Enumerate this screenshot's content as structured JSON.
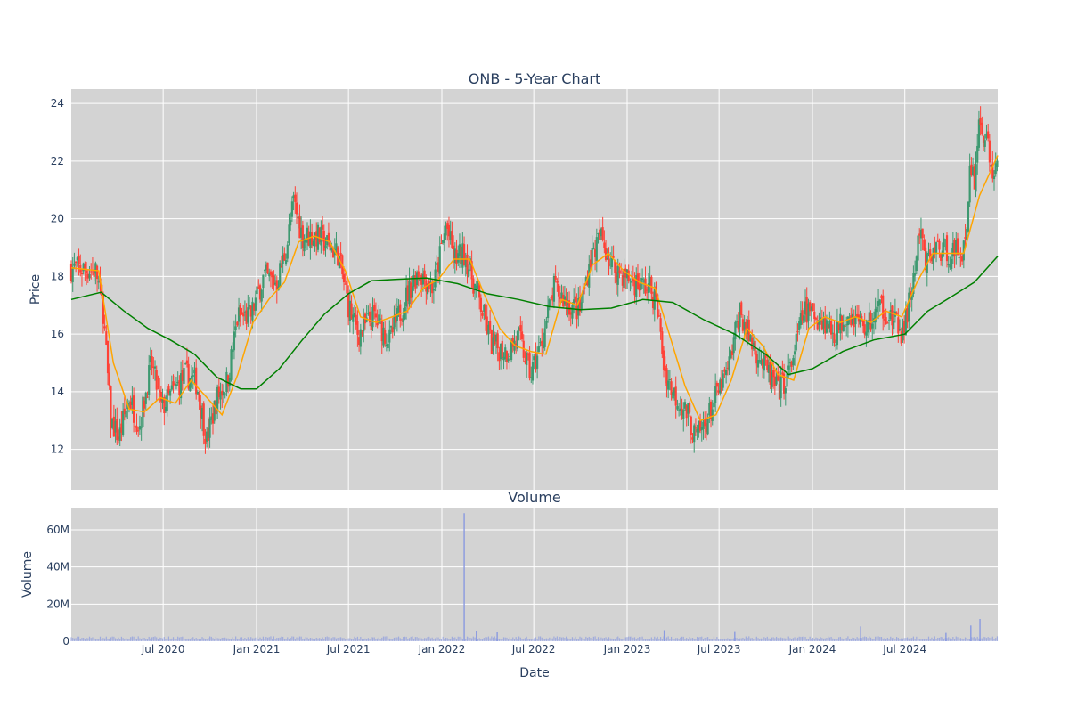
{
  "chart_data": [
    {
      "type": "candlestick",
      "title": "ONB - 5-Year Chart",
      "xlabel": "",
      "ylabel": "Price",
      "x_range": [
        "2020-01-02",
        "2024-12-31"
      ],
      "ylim": [
        10.6,
        24.5
      ],
      "y_ticks": [
        12,
        14,
        16,
        18,
        20,
        22,
        24
      ],
      "grid": true,
      "colors": {
        "increasing": "#3d9970",
        "decreasing": "#ff4136",
        "ma_short": "#ffa500",
        "ma_long": "#008000",
        "background": "#d3d3d3"
      },
      "price_keypoints": [
        [
          "2020-01-02",
          18.3
        ],
        [
          "2020-02-20",
          18.2
        ],
        [
          "2020-03-05",
          16.8
        ],
        [
          "2020-03-20",
          13.0
        ],
        [
          "2020-04-05",
          12.4
        ],
        [
          "2020-04-25",
          13.8
        ],
        [
          "2020-05-15",
          12.8
        ],
        [
          "2020-06-08",
          15.0
        ],
        [
          "2020-06-28",
          13.4
        ],
        [
          "2020-07-20",
          14.0
        ],
        [
          "2020-08-15",
          14.6
        ],
        [
          "2020-09-05",
          14.3
        ],
        [
          "2020-09-25",
          12.3
        ],
        [
          "2020-10-15",
          13.8
        ],
        [
          "2020-11-05",
          14.4
        ],
        [
          "2020-11-25",
          16.6
        ],
        [
          "2020-12-20",
          16.6
        ],
        [
          "2021-01-15",
          18.0
        ],
        [
          "2021-02-10",
          17.8
        ],
        [
          "2021-03-01",
          19.0
        ],
        [
          "2021-03-15",
          20.6
        ],
        [
          "2021-04-01",
          19.4
        ],
        [
          "2021-05-01",
          19.4
        ],
        [
          "2021-06-10",
          18.8
        ],
        [
          "2021-07-01",
          17.0
        ],
        [
          "2021-07-20",
          16.0
        ],
        [
          "2021-08-20",
          16.6
        ],
        [
          "2021-09-20",
          15.8
        ],
        [
          "2021-10-20",
          17.2
        ],
        [
          "2021-11-15",
          18.2
        ],
        [
          "2021-12-15",
          17.6
        ],
        [
          "2022-01-10",
          19.8
        ],
        [
          "2022-01-25",
          18.6
        ],
        [
          "2022-02-15",
          18.8
        ],
        [
          "2022-03-15",
          17.2
        ],
        [
          "2022-04-10",
          15.6
        ],
        [
          "2022-05-10",
          15.4
        ],
        [
          "2022-06-01",
          15.9
        ],
        [
          "2022-06-25",
          14.6
        ],
        [
          "2022-07-15",
          15.6
        ],
        [
          "2022-08-10",
          17.6
        ],
        [
          "2022-09-10",
          17.0
        ],
        [
          "2022-09-30",
          16.8
        ],
        [
          "2022-10-20",
          18.6
        ],
        [
          "2022-11-10",
          19.4
        ],
        [
          "2022-12-01",
          18.4
        ],
        [
          "2022-12-20",
          18.1
        ],
        [
          "2023-01-15",
          17.8
        ],
        [
          "2023-02-15",
          17.6
        ],
        [
          "2023-03-01",
          17.0
        ],
        [
          "2023-03-15",
          14.8
        ],
        [
          "2023-04-01",
          14.0
        ],
        [
          "2023-05-01",
          13.2
        ],
        [
          "2023-05-15",
          12.4
        ],
        [
          "2023-06-01",
          12.8
        ],
        [
          "2023-06-25",
          13.8
        ],
        [
          "2023-07-20",
          14.8
        ],
        [
          "2023-08-10",
          16.8
        ],
        [
          "2023-09-01",
          15.8
        ],
        [
          "2023-10-01",
          14.8
        ],
        [
          "2023-10-25",
          14.0
        ],
        [
          "2023-11-15",
          14.6
        ],
        [
          "2023-12-15",
          16.8
        ],
        [
          "2024-01-15",
          16.6
        ],
        [
          "2024-02-15",
          16.0
        ],
        [
          "2024-03-10",
          16.8
        ],
        [
          "2024-04-15",
          16.2
        ],
        [
          "2024-05-15",
          17.0
        ],
        [
          "2024-06-10",
          16.4
        ],
        [
          "2024-06-28",
          16.0
        ],
        [
          "2024-07-15",
          17.6
        ],
        [
          "2024-08-01",
          19.6
        ],
        [
          "2024-08-10",
          18.4
        ],
        [
          "2024-09-01",
          19.0
        ],
        [
          "2024-10-01",
          18.8
        ],
        [
          "2024-10-30",
          19.0
        ],
        [
          "2024-11-06",
          22.0
        ],
        [
          "2024-11-15",
          21.4
        ],
        [
          "2024-11-25",
          23.4
        ],
        [
          "2024-12-10",
          22.6
        ],
        [
          "2024-12-20",
          21.6
        ],
        [
          "2024-12-31",
          21.8
        ]
      ],
      "series": [
        {
          "kind": "moving_average_short",
          "color": "#ffa500",
          "points": [
            [
              "2020-01-02",
              18.3
            ],
            [
              "2020-02-25",
              18.2
            ],
            [
              "2020-03-25",
              15.0
            ],
            [
              "2020-04-25",
              13.4
            ],
            [
              "2020-05-25",
              13.3
            ],
            [
              "2020-06-25",
              13.8
            ],
            [
              "2020-07-25",
              13.6
            ],
            [
              "2020-08-25",
              14.4
            ],
            [
              "2020-09-25",
              13.8
            ],
            [
              "2020-10-25",
              13.2
            ],
            [
              "2020-11-25",
              14.6
            ],
            [
              "2020-12-25",
              16.4
            ],
            [
              "2021-01-25",
              17.2
            ],
            [
              "2021-02-25",
              17.8
            ],
            [
              "2021-03-25",
              19.2
            ],
            [
              "2021-04-25",
              19.4
            ],
            [
              "2021-05-25",
              19.2
            ],
            [
              "2021-06-25",
              18.2
            ],
            [
              "2021-07-25",
              16.6
            ],
            [
              "2021-08-25",
              16.4
            ],
            [
              "2021-09-25",
              16.6
            ],
            [
              "2021-10-25",
              16.8
            ],
            [
              "2021-11-25",
              17.6
            ],
            [
              "2021-12-25",
              17.9
            ],
            [
              "2022-01-25",
              18.6
            ],
            [
              "2022-02-25",
              18.6
            ],
            [
              "2022-03-25",
              17.4
            ],
            [
              "2022-04-25",
              16.2
            ],
            [
              "2022-05-25",
              15.6
            ],
            [
              "2022-06-25",
              15.4
            ],
            [
              "2022-07-25",
              15.3
            ],
            [
              "2022-08-25",
              17.2
            ],
            [
              "2022-09-25",
              17.0
            ],
            [
              "2022-10-25",
              18.4
            ],
            [
              "2022-11-25",
              18.8
            ],
            [
              "2022-12-25",
              18.2
            ],
            [
              "2023-01-25",
              17.8
            ],
            [
              "2023-02-25",
              17.6
            ],
            [
              "2023-03-25",
              16.0
            ],
            [
              "2023-04-25",
              14.2
            ],
            [
              "2023-05-25",
              13.0
            ],
            [
              "2023-06-25",
              13.2
            ],
            [
              "2023-07-25",
              14.4
            ],
            [
              "2023-08-25",
              16.2
            ],
            [
              "2023-09-25",
              15.6
            ],
            [
              "2023-10-25",
              14.6
            ],
            [
              "2023-11-25",
              14.4
            ],
            [
              "2023-12-25",
              16.2
            ],
            [
              "2024-01-25",
              16.6
            ],
            [
              "2024-02-25",
              16.4
            ],
            [
              "2024-03-25",
              16.6
            ],
            [
              "2024-04-25",
              16.4
            ],
            [
              "2024-05-25",
              16.8
            ],
            [
              "2024-06-25",
              16.6
            ],
            [
              "2024-07-25",
              17.8
            ],
            [
              "2024-08-25",
              18.8
            ],
            [
              "2024-09-25",
              18.8
            ],
            [
              "2024-10-25",
              18.8
            ],
            [
              "2024-11-25",
              20.8
            ],
            [
              "2024-12-31",
              22.2
            ]
          ]
        },
        {
          "kind": "moving_average_long",
          "color": "#008000",
          "points": [
            [
              "2020-01-02",
              17.2
            ],
            [
              "2020-03-01",
              17.45
            ],
            [
              "2020-04-15",
              16.8
            ],
            [
              "2020-06-01",
              16.2
            ],
            [
              "2020-07-15",
              15.8
            ],
            [
              "2020-09-01",
              15.3
            ],
            [
              "2020-10-15",
              14.5
            ],
            [
              "2020-12-01",
              14.1
            ],
            [
              "2021-01-01",
              14.1
            ],
            [
              "2021-02-15",
              14.8
            ],
            [
              "2021-04-01",
              15.8
            ],
            [
              "2021-05-15",
              16.7
            ],
            [
              "2021-07-01",
              17.4
            ],
            [
              "2021-08-15",
              17.85
            ],
            [
              "2021-10-01",
              17.9
            ],
            [
              "2021-12-01",
              17.95
            ],
            [
              "2022-02-01",
              17.75
            ],
            [
              "2022-04-01",
              17.4
            ],
            [
              "2022-06-01",
              17.2
            ],
            [
              "2022-08-01",
              16.95
            ],
            [
              "2022-10-01",
              16.85
            ],
            [
              "2022-12-01",
              16.9
            ],
            [
              "2023-02-01",
              17.2
            ],
            [
              "2023-04-01",
              17.1
            ],
            [
              "2023-06-01",
              16.5
            ],
            [
              "2023-08-01",
              16.0
            ],
            [
              "2023-10-01",
              15.3
            ],
            [
              "2023-11-15",
              14.6
            ],
            [
              "2024-01-01",
              14.8
            ],
            [
              "2024-03-01",
              15.4
            ],
            [
              "2024-05-01",
              15.8
            ],
            [
              "2024-07-01",
              16.0
            ],
            [
              "2024-08-15",
              16.8
            ],
            [
              "2024-10-01",
              17.3
            ],
            [
              "2024-11-15",
              17.8
            ],
            [
              "2024-12-31",
              18.7
            ]
          ]
        }
      ]
    },
    {
      "type": "bar",
      "title": "Volume",
      "xlabel": "Date",
      "ylabel": "Volume",
      "ylim": [
        0,
        72000000
      ],
      "y_ticks": [
        0,
        20000000,
        40000000,
        60000000
      ],
      "y_tick_labels": [
        "0",
        "20M",
        "40M",
        "60M"
      ],
      "x_ticks": [
        "2020-07-01",
        "2021-01-01",
        "2021-07-01",
        "2022-01-01",
        "2022-07-01",
        "2023-01-01",
        "2023-07-01",
        "2024-01-01",
        "2024-07-01"
      ],
      "x_tick_labels": [
        "Jul 2020",
        "Jan 2021",
        "Jul 2021",
        "Jan 2022",
        "Jul 2022",
        "Jan 2023",
        "Jul 2023",
        "Jan 2024",
        "Jul 2024"
      ],
      "color": "#8a9ae0",
      "base_volume": 1500000,
      "spikes": [
        [
          "2022-02-14",
          69000000
        ],
        [
          "2024-11-26",
          12000000
        ],
        [
          "2024-11-08",
          8500000
        ],
        [
          "2024-04-05",
          8000000
        ],
        [
          "2023-03-15",
          6000000
        ],
        [
          "2022-03-10",
          5500000
        ],
        [
          "2023-08-01",
          5000000
        ],
        [
          "2022-04-20",
          4800000
        ],
        [
          "2024-09-20",
          4500000
        ]
      ]
    }
  ]
}
